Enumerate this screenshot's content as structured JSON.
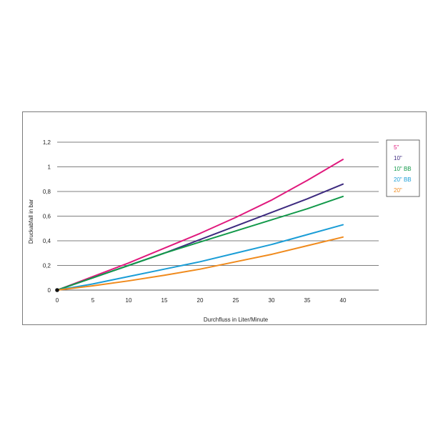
{
  "chart_data": {
    "type": "line",
    "title": "",
    "xlabel": "Durchfluss in Liter/Minute",
    "ylabel": "Druckabfall in bar",
    "xlim": [
      0,
      45
    ],
    "ylim": [
      0,
      1.2
    ],
    "x_ticks": [
      0,
      5,
      10,
      15,
      20,
      25,
      30,
      35,
      40
    ],
    "x_tick_labels": [
      "0",
      "5",
      "10",
      "15",
      "20",
      "25",
      "30",
      "35",
      "40"
    ],
    "y_ticks": [
      0,
      0.2,
      0.4,
      0.6,
      0.8,
      1.0,
      1.2
    ],
    "y_tick_labels": [
      "0",
      "0,2",
      "0,4",
      "0,6",
      "0,8",
      "1",
      "1,2"
    ],
    "grid": "horizontal",
    "legend_position": "right",
    "x": [
      0,
      5,
      10,
      15,
      20,
      25,
      30,
      35,
      40
    ],
    "series": [
      {
        "name": "5\"",
        "color": "#e0197d",
        "values": [
          0,
          0.11,
          0.22,
          0.34,
          0.46,
          0.59,
          0.73,
          0.89,
          1.06
        ]
      },
      {
        "name": "10\"",
        "color": "#3d2a7f",
        "values": [
          0,
          0.1,
          0.2,
          0.3,
          0.41,
          0.52,
          0.63,
          0.74,
          0.86
        ]
      },
      {
        "name": "10\" BB",
        "color": "#12994a",
        "values": [
          0,
          0.1,
          0.2,
          0.3,
          0.39,
          0.48,
          0.57,
          0.66,
          0.76
        ]
      },
      {
        "name": "20\" BB",
        "color": "#1a9dd6",
        "values": [
          0,
          0.05,
          0.11,
          0.17,
          0.23,
          0.3,
          0.37,
          0.45,
          0.53
        ]
      },
      {
        "name": "20\"",
        "color": "#f08a1c",
        "values": [
          0,
          0.035,
          0.075,
          0.12,
          0.17,
          0.23,
          0.29,
          0.36,
          0.43
        ]
      }
    ]
  }
}
